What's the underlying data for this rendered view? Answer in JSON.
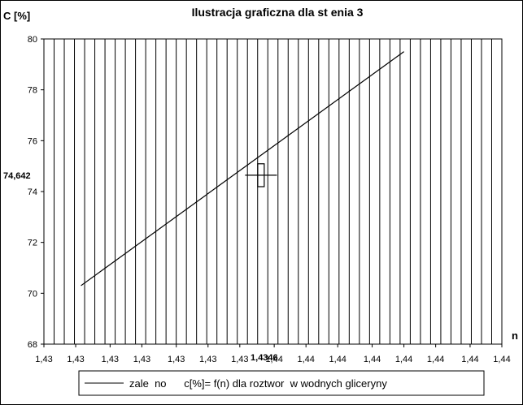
{
  "chart_data": {
    "type": "line",
    "title": "Ilustracja graficzna dla st    enia 3",
    "ylabel": "C [%]",
    "xlabel": "n",
    "ylim": [
      68,
      80
    ],
    "yticks": [
      68,
      70,
      72,
      74,
      76,
      78,
      80
    ],
    "xlim": [
      1.4264,
      1.4437
    ],
    "xtick_values": [
      1.4264,
      1.4276,
      1.4289,
      1.4301,
      1.4314,
      1.4326,
      1.4338,
      1.4351,
      1.4363,
      1.4375,
      1.4388,
      1.44,
      1.4412,
      1.4425,
      1.4437
    ],
    "xtick_labels": [
      "1,43",
      "1,43",
      "1,43",
      "1,43",
      "1,43",
      "1,43",
      "1,43",
      "1,44",
      "1,44",
      "1,44",
      "1,44",
      "1,44",
      "1,44",
      "1,44",
      "1,44"
    ],
    "vertical_grid": "dense",
    "horizontal_grid": false,
    "series": [
      {
        "name": "zale  no      c[%]= f(n) dla roztwor  w wodnych gliceryny",
        "x": [
          1.4278,
          1.44
        ],
        "y": [
          70.3,
          79.5
        ]
      }
    ],
    "annotations": {
      "point_x": 1.4346,
      "point_y": 74.642,
      "x_label": "1,4346",
      "y_label": "74,642",
      "x_error_half": 0.0006,
      "y_error_half": 0.45
    },
    "legend_position": "bottom"
  }
}
